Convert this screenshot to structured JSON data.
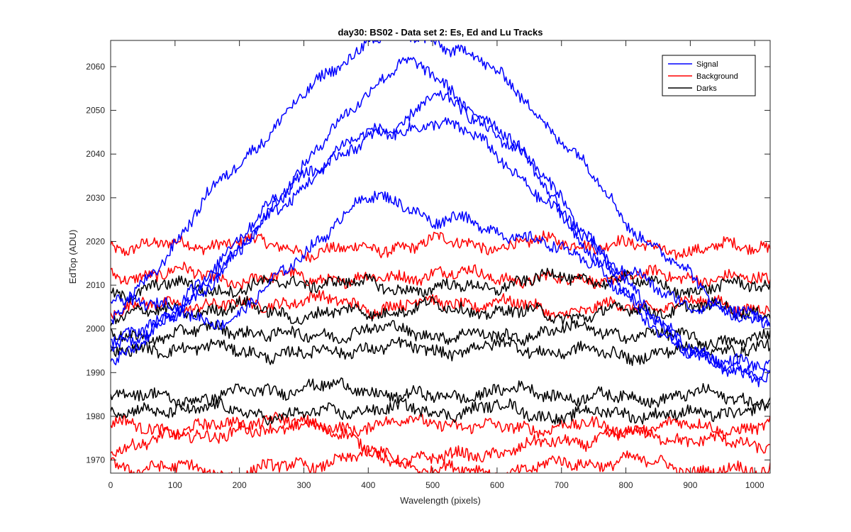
{
  "colors": {
    "signal": "#0000ff",
    "background": "#ff0000",
    "darks": "#000000",
    "axes": "#262626"
  },
  "chart_data": {
    "type": "line",
    "title": "day30: BS02 - Data set 2: Es, Ed and Lu Tracks",
    "xlabel": "Wavelength (pixels)",
    "ylabel": "EdTop (ADU)",
    "xlim": [
      0,
      1024
    ],
    "ylim": [
      1967,
      2066
    ],
    "x_ticks": [
      0,
      100,
      200,
      300,
      400,
      500,
      600,
      700,
      800,
      900,
      1000
    ],
    "y_ticks": [
      1970,
      1980,
      1990,
      2000,
      2010,
      2020,
      2030,
      2040,
      2050,
      2060
    ],
    "grid": false,
    "legend": {
      "placement": "top-right",
      "entries": [
        {
          "label": "Signal",
          "color": "#0000ff"
        },
        {
          "label": "Background",
          "color": "#ff0000"
        },
        {
          "label": "Darks",
          "color": "#000000"
        }
      ]
    },
    "series": [
      {
        "group": "Signal",
        "color": "#0000ff",
        "x": [
          0,
          60,
          100,
          150,
          200,
          250,
          300,
          350,
          400,
          450,
          500,
          550,
          600,
          650,
          700,
          750,
          800,
          850,
          900,
          950,
          1000,
          1024
        ],
        "y": [
          2001,
          2012,
          2020,
          2030,
          2038,
          2046,
          2053,
          2060,
          2066,
          2067,
          2066,
          2064,
          2058,
          2052,
          2043,
          2035,
          2025,
          2018,
          2012,
          2005,
          2002,
          2001
        ]
      },
      {
        "group": "Signal",
        "color": "#0000ff",
        "x": [
          0,
          60,
          100,
          150,
          200,
          250,
          300,
          350,
          400,
          450,
          500,
          550,
          600,
          650,
          700,
          750,
          800,
          850,
          900,
          950,
          1000,
          1024
        ],
        "y": [
          1997,
          2000,
          2004,
          2012,
          2020,
          2030,
          2037,
          2046,
          2055,
          2061,
          2058,
          2052,
          2046,
          2038,
          2028,
          2018,
          2008,
          2000,
          1994,
          1992,
          1991,
          1990
        ]
      },
      {
        "group": "Signal",
        "color": "#0000ff",
        "x": [
          0,
          60,
          100,
          150,
          200,
          250,
          300,
          350,
          400,
          450,
          500,
          550,
          600,
          650,
          700,
          750,
          800,
          850,
          900,
          950,
          1000,
          1024
        ],
        "y": [
          1993,
          1998,
          2003,
          2010,
          2018,
          2026,
          2033,
          2040,
          2045,
          2047,
          2053,
          2050,
          2045,
          2038,
          2030,
          2020,
          2010,
          2002,
          1995,
          1990,
          1989,
          1990
        ]
      },
      {
        "group": "Signal",
        "color": "#0000ff",
        "x": [
          0,
          60,
          100,
          150,
          200,
          250,
          300,
          350,
          400,
          450,
          500,
          550,
          600,
          650,
          700,
          750,
          800,
          850,
          900,
          950,
          1000,
          1024
        ],
        "y": [
          1995,
          2000,
          2004,
          2011,
          2019,
          2027,
          2035,
          2040,
          2043,
          2045,
          2048,
          2045,
          2040,
          2033,
          2025,
          2016,
          2008,
          2001,
          1996,
          1993,
          1991,
          1991
        ]
      },
      {
        "group": "Signal",
        "color": "#0000ff",
        "x": [
          0,
          60,
          100,
          150,
          200,
          250,
          300,
          350,
          400,
          450,
          500,
          550,
          600,
          650,
          700,
          750,
          800,
          850,
          900,
          950,
          1000,
          1024
        ],
        "y": [
          2008,
          2006,
          2004,
          2002,
          2003,
          2010,
          2018,
          2024,
          2030,
          2030,
          2024,
          2025,
          2023,
          2020,
          2018,
          2016,
          2013,
          2009,
          2006,
          2004,
          2003,
          2002
        ]
      },
      {
        "group": "Background",
        "color": "#ff0000",
        "x": [
          0,
          100,
          200,
          300,
          400,
          500,
          600,
          700,
          800,
          900,
          1000,
          1024
        ],
        "y": [
          2019,
          2019,
          2020,
          2018,
          2018,
          2020,
          2019,
          2020,
          2019,
          2018,
          2019,
          2019
        ]
      },
      {
        "group": "Background",
        "color": "#ff0000",
        "x": [
          0,
          100,
          200,
          300,
          400,
          500,
          600,
          700,
          800,
          900,
          1000,
          1024
        ],
        "y": [
          2012,
          2013,
          2011,
          2012,
          2011,
          2013,
          2012,
          2011,
          2012,
          2012,
          2011,
          2011
        ]
      },
      {
        "group": "Background",
        "color": "#ff0000",
        "x": [
          0,
          100,
          200,
          300,
          400,
          500,
          600,
          700,
          800,
          900,
          1000,
          1024
        ],
        "y": [
          2004,
          2006,
          2005,
          2007,
          2005,
          2006,
          2006,
          2004,
          2005,
          2006,
          2005,
          2005
        ]
      },
      {
        "group": "Background",
        "color": "#ff0000",
        "x": [
          0,
          100,
          200,
          300,
          400,
          500,
          600,
          700,
          800,
          900,
          1000,
          1024
        ],
        "y": [
          1978,
          1977,
          1978,
          1977,
          1978,
          1979,
          1977,
          1978,
          1977,
          1978,
          1977,
          1978
        ]
      },
      {
        "group": "Background",
        "color": "#ff0000",
        "x": [
          0,
          100,
          200,
          300,
          400,
          500,
          600,
          700,
          800,
          900,
          1000,
          1024
        ],
        "y": [
          1973,
          1975,
          1977,
          1980,
          1972,
          1970,
          1972,
          1974,
          1976,
          1975,
          1973,
          1974
        ]
      },
      {
        "group": "Background",
        "color": "#ff0000",
        "x": [
          0,
          100,
          200,
          300,
          400,
          500,
          600,
          700,
          800,
          900,
          1000,
          1024
        ],
        "y": [
          1969,
          1968,
          1967,
          1969,
          1971,
          1968,
          1967,
          1969,
          1970,
          1968,
          1967,
          1968
        ]
      },
      {
        "group": "Darks",
        "color": "#000000",
        "x": [
          0,
          100,
          200,
          300,
          400,
          500,
          600,
          700,
          800,
          900,
          1000,
          1024
        ],
        "y": [
          2008,
          2010,
          2009,
          2011,
          2010,
          2009,
          2010,
          2012,
          2011,
          2009,
          2010,
          2010
        ]
      },
      {
        "group": "Darks",
        "color": "#000000",
        "x": [
          0,
          100,
          200,
          300,
          400,
          500,
          600,
          700,
          800,
          900,
          1000,
          1024
        ],
        "y": [
          2003,
          2004,
          2005,
          2003,
          2004,
          2005,
          2004,
          2003,
          2004,
          2005,
          2004,
          2004
        ]
      },
      {
        "group": "Darks",
        "color": "#000000",
        "x": [
          0,
          100,
          200,
          300,
          400,
          500,
          600,
          700,
          800,
          900,
          1000,
          1024
        ],
        "y": [
          1998,
          1999,
          2000,
          1998,
          2000,
          1999,
          1998,
          2000,
          1999,
          1998,
          1997,
          1998
        ]
      },
      {
        "group": "Darks",
        "color": "#000000",
        "x": [
          0,
          100,
          200,
          300,
          400,
          500,
          600,
          700,
          800,
          900,
          1000,
          1024
        ],
        "y": [
          1994,
          1996,
          1995,
          1994,
          1996,
          1995,
          1996,
          1995,
          1994,
          1995,
          1996,
          1995
        ]
      },
      {
        "group": "Darks",
        "color": "#000000",
        "x": [
          0,
          100,
          200,
          300,
          400,
          500,
          600,
          700,
          800,
          900,
          1000,
          1024
        ],
        "y": [
          1985,
          1984,
          1985,
          1987,
          1986,
          1984,
          1986,
          1985,
          1984,
          1985,
          1984,
          1984
        ]
      },
      {
        "group": "Darks",
        "color": "#000000",
        "x": [
          0,
          100,
          200,
          300,
          400,
          500,
          600,
          700,
          800,
          900,
          1000,
          1024
        ],
        "y": [
          1980,
          1982,
          1981,
          1980,
          1982,
          1981,
          1982,
          1980,
          1981,
          1980,
          1982,
          1981
        ]
      }
    ]
  }
}
